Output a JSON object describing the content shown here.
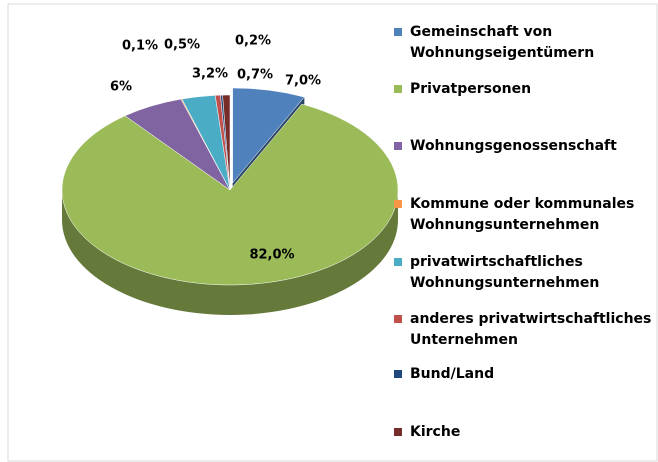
{
  "chart_data": {
    "type": "pie3d",
    "categories": [
      "Gemeinschaft von Wohnungseigentümern",
      "Privatpersonen",
      "Wohnungsgenossenschaft",
      "Kommune oder kommunales Wohnungsunternehmen",
      "privatwirtschaftliches Wohnungsunternehmen",
      "anderes privatwirtschaftliches Unternehmen",
      "Bund/Land",
      "Kirche"
    ],
    "values": [
      7.0,
      82.0,
      6,
      0.1,
      3.2,
      0.5,
      0.2,
      0.7
    ],
    "value_labels": [
      "7,0%",
      "82,0%",
      "6%",
      "0,1%",
      "3,2%",
      "0,5%",
      "0,2%",
      "0,7%"
    ],
    "colors": [
      "#4f81bd",
      "#9bbb59",
      "#8064a2",
      "#f79646",
      "#4bacc6",
      "#c0504d",
      "#1f497d",
      "#772c2a"
    ],
    "legend": "right"
  }
}
